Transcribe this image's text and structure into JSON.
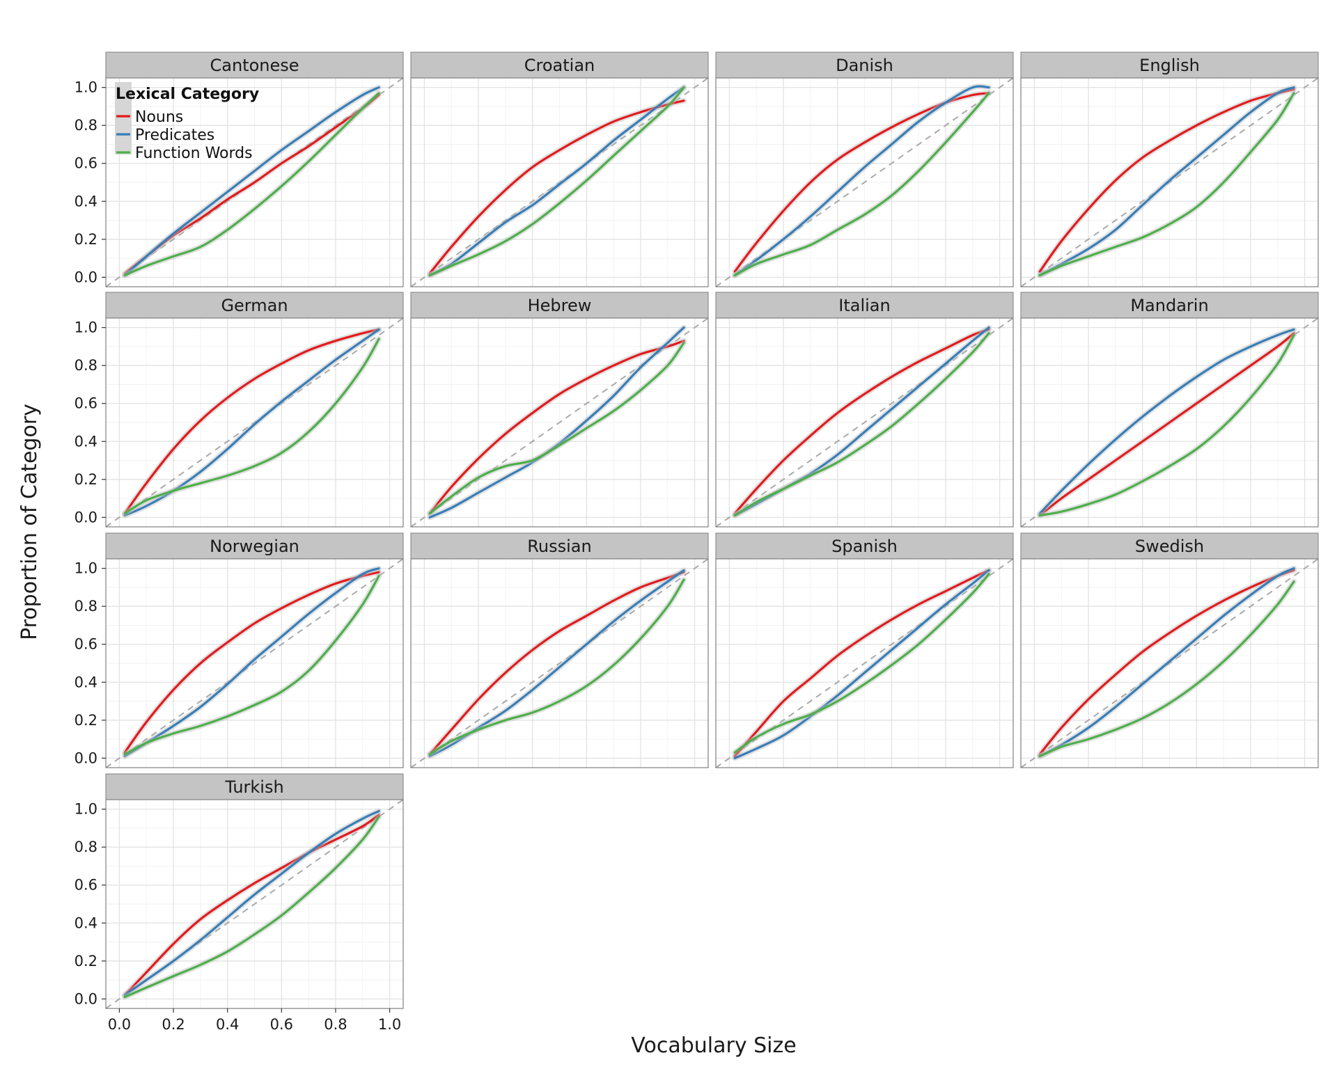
{
  "chart_data": {
    "type": "line",
    "facet_by": "language",
    "xlabel": "Vocabulary Size",
    "ylabel": "Proportion of Category",
    "xlim": [
      -0.05,
      1.05
    ],
    "ylim": [
      -0.05,
      1.05
    ],
    "x_ticks": [
      "0.0",
      "0.2",
      "0.4",
      "0.6",
      "0.8",
      "1.0"
    ],
    "y_ticks": [
      "0.0",
      "0.2",
      "0.4",
      "0.6",
      "0.8",
      "1.0"
    ],
    "grid": true,
    "reference_line": "dashed y = x",
    "legend": {
      "title": "Lexical Category",
      "placement": "inside-top-left-of-first-panel",
      "entries": [
        {
          "name": "Nouns",
          "color": "#e41a1c"
        },
        {
          "name": "Predicates",
          "color": "#377eb8"
        },
        {
          "name": "Function Words",
          "color": "#4daf4a"
        }
      ]
    },
    "x": [
      0.02,
      0.1,
      0.2,
      0.3,
      0.4,
      0.5,
      0.6,
      0.7,
      0.8,
      0.9,
      0.96
    ],
    "facets": [
      {
        "name": "Cantonese",
        "series": [
          {
            "name": "Nouns",
            "values": [
              0.02,
              0.11,
              0.22,
              0.31,
              0.41,
              0.5,
              0.6,
              0.69,
              0.79,
              0.89,
              0.96
            ]
          },
          {
            "name": "Predicates",
            "values": [
              0.01,
              0.11,
              0.23,
              0.34,
              0.45,
              0.56,
              0.67,
              0.77,
              0.87,
              0.96,
              1.0
            ]
          },
          {
            "name": "Function Words",
            "values": [
              0.01,
              0.06,
              0.11,
              0.16,
              0.25,
              0.36,
              0.48,
              0.61,
              0.75,
              0.89,
              0.97
            ]
          }
        ]
      },
      {
        "name": "Croatian",
        "series": [
          {
            "name": "Nouns",
            "values": [
              0.02,
              0.16,
              0.32,
              0.46,
              0.58,
              0.67,
              0.75,
              0.82,
              0.87,
              0.91,
              0.93
            ]
          },
          {
            "name": "Predicates",
            "values": [
              0.01,
              0.07,
              0.18,
              0.29,
              0.38,
              0.49,
              0.6,
              0.72,
              0.83,
              0.94,
              1.0
            ]
          },
          {
            "name": "Function Words",
            "values": [
              0.01,
              0.06,
              0.12,
              0.19,
              0.28,
              0.39,
              0.51,
              0.64,
              0.77,
              0.9,
              1.0
            ]
          }
        ]
      },
      {
        "name": "Danish",
        "series": [
          {
            "name": "Nouns",
            "values": [
              0.03,
              0.18,
              0.35,
              0.5,
              0.62,
              0.71,
              0.79,
              0.86,
              0.92,
              0.96,
              0.97
            ]
          },
          {
            "name": "Predicates",
            "values": [
              0.01,
              0.09,
              0.2,
              0.32,
              0.45,
              0.58,
              0.7,
              0.82,
              0.92,
              1.0,
              1.0
            ]
          },
          {
            "name": "Function Words",
            "values": [
              0.01,
              0.07,
              0.12,
              0.17,
              0.25,
              0.33,
              0.43,
              0.56,
              0.71,
              0.87,
              0.97
            ]
          }
        ]
      },
      {
        "name": "English",
        "series": [
          {
            "name": "Nouns",
            "values": [
              0.03,
              0.19,
              0.36,
              0.51,
              0.63,
              0.72,
              0.8,
              0.87,
              0.93,
              0.97,
              0.99
            ]
          },
          {
            "name": "Predicates",
            "values": [
              0.01,
              0.07,
              0.15,
              0.25,
              0.38,
              0.51,
              0.63,
              0.75,
              0.87,
              0.97,
              1.0
            ]
          },
          {
            "name": "Function Words",
            "values": [
              0.01,
              0.06,
              0.11,
              0.16,
              0.21,
              0.28,
              0.37,
              0.5,
              0.66,
              0.83,
              0.97
            ]
          }
        ]
      },
      {
        "name": "German",
        "series": [
          {
            "name": "Nouns",
            "values": [
              0.02,
              0.18,
              0.36,
              0.51,
              0.63,
              0.73,
              0.81,
              0.88,
              0.93,
              0.97,
              0.99
            ]
          },
          {
            "name": "Predicates",
            "values": [
              0.01,
              0.06,
              0.14,
              0.24,
              0.36,
              0.49,
              0.61,
              0.72,
              0.83,
              0.93,
              0.99
            ]
          },
          {
            "name": "Function Words",
            "values": [
              0.02,
              0.09,
              0.14,
              0.18,
              0.22,
              0.27,
              0.34,
              0.45,
              0.6,
              0.79,
              0.94
            ]
          }
        ]
      },
      {
        "name": "Hebrew",
        "series": [
          {
            "name": "Nouns",
            "values": [
              0.02,
              0.16,
              0.31,
              0.44,
              0.55,
              0.65,
              0.73,
              0.8,
              0.86,
              0.9,
              0.93
            ]
          },
          {
            "name": "Predicates",
            "values": [
              0.0,
              0.05,
              0.13,
              0.21,
              0.29,
              0.39,
              0.51,
              0.64,
              0.79,
              0.92,
              1.0
            ]
          },
          {
            "name": "Function Words",
            "values": [
              0.02,
              0.11,
              0.21,
              0.27,
              0.3,
              0.38,
              0.47,
              0.56,
              0.67,
              0.8,
              0.92
            ]
          }
        ]
      },
      {
        "name": "Italian",
        "series": [
          {
            "name": "Nouns",
            "values": [
              0.02,
              0.15,
              0.3,
              0.43,
              0.55,
              0.65,
              0.74,
              0.82,
              0.89,
              0.96,
              0.99
            ]
          },
          {
            "name": "Predicates",
            "values": [
              0.01,
              0.07,
              0.15,
              0.23,
              0.33,
              0.45,
              0.57,
              0.69,
              0.81,
              0.93,
              1.0
            ]
          },
          {
            "name": "Function Words",
            "values": [
              0.01,
              0.08,
              0.15,
              0.22,
              0.29,
              0.38,
              0.48,
              0.6,
              0.73,
              0.87,
              0.97
            ]
          }
        ]
      },
      {
        "name": "Mandarin",
        "series": [
          {
            "name": "Nouns",
            "values": [
              0.01,
              0.1,
              0.2,
              0.3,
              0.4,
              0.5,
              0.6,
              0.7,
              0.8,
              0.9,
              0.97
            ]
          },
          {
            "name": "Predicates",
            "values": [
              0.02,
              0.14,
              0.28,
              0.41,
              0.53,
              0.64,
              0.74,
              0.83,
              0.9,
              0.96,
              0.99
            ]
          },
          {
            "name": "Function Words",
            "values": [
              0.01,
              0.03,
              0.07,
              0.12,
              0.19,
              0.27,
              0.36,
              0.48,
              0.63,
              0.81,
              0.96
            ]
          }
        ]
      },
      {
        "name": "Norwegian",
        "series": [
          {
            "name": "Nouns",
            "values": [
              0.03,
              0.19,
              0.36,
              0.5,
              0.61,
              0.71,
              0.79,
              0.86,
              0.92,
              0.96,
              0.98
            ]
          },
          {
            "name": "Predicates",
            "values": [
              0.01,
              0.08,
              0.17,
              0.27,
              0.39,
              0.52,
              0.64,
              0.76,
              0.87,
              0.97,
              1.0
            ]
          },
          {
            "name": "Function Words",
            "values": [
              0.02,
              0.08,
              0.13,
              0.17,
              0.22,
              0.28,
              0.35,
              0.46,
              0.62,
              0.81,
              0.96
            ]
          }
        ]
      },
      {
        "name": "Russian",
        "series": [
          {
            "name": "Nouns",
            "values": [
              0.02,
              0.15,
              0.31,
              0.45,
              0.57,
              0.67,
              0.75,
              0.83,
              0.9,
              0.95,
              0.98
            ]
          },
          {
            "name": "Predicates",
            "values": [
              0.01,
              0.07,
              0.16,
              0.25,
              0.36,
              0.48,
              0.6,
              0.72,
              0.83,
              0.93,
              0.99
            ]
          },
          {
            "name": "Function Words",
            "values": [
              0.02,
              0.09,
              0.15,
              0.2,
              0.24,
              0.3,
              0.38,
              0.49,
              0.63,
              0.8,
              0.94
            ]
          }
        ]
      },
      {
        "name": "Spanish",
        "series": [
          {
            "name": "Nouns",
            "values": [
              0.01,
              0.14,
              0.3,
              0.42,
              0.54,
              0.64,
              0.73,
              0.81,
              0.88,
              0.95,
              0.99
            ]
          },
          {
            "name": "Predicates",
            "values": [
              0.0,
              0.05,
              0.12,
              0.22,
              0.33,
              0.45,
              0.57,
              0.69,
              0.81,
              0.92,
              0.99
            ]
          },
          {
            "name": "Function Words",
            "values": [
              0.03,
              0.11,
              0.18,
              0.23,
              0.3,
              0.39,
              0.49,
              0.6,
              0.73,
              0.87,
              0.97
            ]
          }
        ]
      },
      {
        "name": "Swedish",
        "series": [
          {
            "name": "Nouns",
            "values": [
              0.02,
              0.16,
              0.31,
              0.44,
              0.56,
              0.66,
              0.75,
              0.83,
              0.9,
              0.96,
              0.99
            ]
          },
          {
            "name": "Predicates",
            "values": [
              0.01,
              0.07,
              0.16,
              0.27,
              0.39,
              0.51,
              0.63,
              0.75,
              0.86,
              0.96,
              1.0
            ]
          },
          {
            "name": "Function Words",
            "values": [
              0.01,
              0.06,
              0.1,
              0.15,
              0.21,
              0.29,
              0.39,
              0.51,
              0.65,
              0.81,
              0.93
            ]
          }
        ]
      },
      {
        "name": "Turkish",
        "series": [
          {
            "name": "Nouns",
            "values": [
              0.02,
              0.14,
              0.29,
              0.42,
              0.52,
              0.61,
              0.69,
              0.77,
              0.84,
              0.91,
              0.97
            ]
          },
          {
            "name": "Predicates",
            "values": [
              0.02,
              0.1,
              0.2,
              0.31,
              0.43,
              0.55,
              0.66,
              0.77,
              0.87,
              0.95,
              0.99
            ]
          },
          {
            "name": "Function Words",
            "values": [
              0.01,
              0.06,
              0.12,
              0.18,
              0.25,
              0.34,
              0.44,
              0.56,
              0.69,
              0.84,
              0.96
            ]
          }
        ]
      }
    ]
  }
}
